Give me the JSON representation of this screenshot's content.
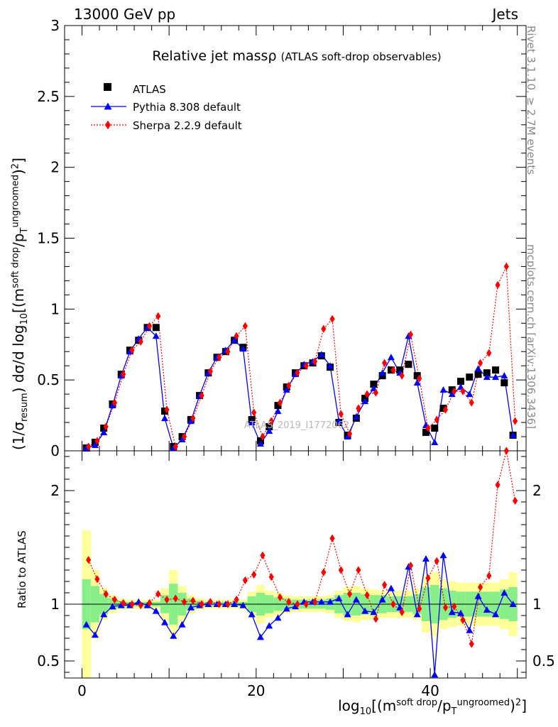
{
  "header": {
    "left": "13000 GeV pp",
    "right": "Jets"
  },
  "side": {
    "rivet": "Rivet 3.1.10, ≥ 2.7M events",
    "mcplots": "mcplots.cern.ch [arXiv:1306.3436]"
  },
  "chart_data": {
    "type": "scatter",
    "title": "Relative jet massρ",
    "subtitle": "(ATLAS soft-drop observables)",
    "watermark": "ATLAS_2019_I1772062",
    "xlabel": "log10[(m^soft drop/pT^ungroomed)^2]",
    "ylabel_top": "(1/σresum) dσ/d log10[(m^soft drop/pT^ungroomed)^2]",
    "ylabel_ratio": "Ratio to ATLAS",
    "xlim": [
      -2,
      51
    ],
    "ylim_top": [
      0,
      3
    ],
    "ylim_ratio": [
      0.35,
      2.35
    ],
    "x_ticks": [
      0,
      20,
      40
    ],
    "y_ticks_top": [
      0,
      0.5,
      1,
      1.5,
      2,
      2.5,
      3
    ],
    "y_tick_labels_top": [
      "0",
      "0.5",
      "1",
      "1.5",
      "2",
      "2.5",
      "3"
    ],
    "y_ticks_ratio": [
      0.5,
      1,
      2
    ],
    "y_tick_labels_ratio": [
      "0.5",
      "1",
      "2"
    ],
    "legend": [
      "ATLAS",
      "Pythia 8.308 default",
      "Sherpa 2.2.9 default"
    ],
    "x": [
      0.5,
      1.5,
      2.5,
      3.5,
      4.5,
      5.5,
      6.5,
      7.5,
      8.5,
      9.5,
      10.5,
      11.5,
      12.5,
      13.5,
      14.5,
      15.5,
      16.5,
      17.5,
      18.5,
      19.5,
      20.5,
      21.5,
      22.5,
      23.5,
      24.5,
      25.5,
      26.5,
      27.5,
      28.5,
      29.5,
      30.5,
      31.5,
      32.5,
      33.5,
      34.5,
      35.5,
      36.5,
      37.5,
      38.5,
      39.5,
      40.5,
      41.5,
      42.5,
      43.5,
      44.5,
      45.5,
      46.5,
      47.5,
      48.5,
      49.5
    ],
    "series": [
      {
        "name": "ATLAS",
        "values": [
          0.02,
          0.06,
          0.16,
          0.33,
          0.54,
          0.71,
          0.78,
          0.87,
          0.87,
          0.28,
          0.03,
          0.1,
          0.22,
          0.39,
          0.55,
          0.66,
          0.7,
          0.78,
          0.73,
          0.22,
          0.07,
          0.17,
          0.32,
          0.45,
          0.55,
          0.6,
          0.62,
          0.67,
          0.59,
          0.2,
          0.11,
          0.23,
          0.37,
          0.47,
          0.53,
          0.57,
          0.57,
          0.61,
          0.53,
          0.13,
          0.16,
          0.3,
          0.43,
          0.49,
          0.52,
          0.54,
          0.55,
          0.57,
          0.48,
          0.11
        ]
      },
      {
        "name": "Pythia 8.308 default",
        "values": [
          0.02,
          0.04,
          0.13,
          0.32,
          0.53,
          0.7,
          0.79,
          0.87,
          0.81,
          0.23,
          0.02,
          0.08,
          0.21,
          0.39,
          0.55,
          0.66,
          0.71,
          0.78,
          0.72,
          0.2,
          0.05,
          0.14,
          0.28,
          0.43,
          0.54,
          0.61,
          0.63,
          0.68,
          0.6,
          0.21,
          0.1,
          0.24,
          0.35,
          0.44,
          0.55,
          0.66,
          0.55,
          0.81,
          0.48,
          0.18,
          0.06,
          0.43,
          0.4,
          0.45,
          0.4,
          0.58,
          0.52,
          0.52,
          0.53,
          0.11
        ]
      },
      {
        "name": "Sherpa 2.2.9 default",
        "values": [
          0.03,
          0.07,
          0.17,
          0.34,
          0.54,
          0.71,
          0.77,
          0.88,
          0.95,
          0.29,
          0.03,
          0.1,
          0.23,
          0.39,
          0.56,
          0.66,
          0.7,
          0.81,
          0.88,
          0.27,
          0.1,
          0.21,
          0.34,
          0.46,
          0.55,
          0.6,
          0.63,
          0.86,
          0.93,
          0.26,
          0.12,
          0.3,
          0.4,
          0.41,
          0.62,
          0.57,
          0.53,
          0.82,
          0.51,
          0.16,
          0.22,
          0.29,
          0.42,
          0.42,
          0.34,
          0.62,
          0.69,
          1.17,
          1.3,
          0.21
        ]
      }
    ],
    "ratio": {
      "Pythia 8.308 default": [
        0.82,
        0.73,
        0.91,
        0.98,
        0.99,
        0.99,
        1.02,
        0.99,
        0.94,
        0.84,
        0.72,
        0.82,
        0.97,
        0.99,
        1.0,
        1.0,
        1.0,
        1.0,
        0.99,
        0.91,
        0.71,
        0.81,
        0.88,
        0.96,
        0.98,
        1.02,
        1.02,
        1.02,
        1.02,
        1.05,
        0.91,
        1.04,
        0.94,
        0.93,
        1.04,
        1.14,
        0.97,
        1.33,
        0.91,
        1.4,
        0.38,
        1.43,
        0.93,
        0.92,
        0.77,
        1.07,
        0.95,
        0.91,
        1.1,
        1.0
      ],
      "Sherpa 2.2.9 default": [
        1.39,
        1.22,
        1.09,
        1.04,
        1.01,
        1.0,
        0.99,
        1.01,
        1.09,
        1.04,
        1.05,
        1.02,
        1.03,
        1.0,
        1.02,
        1.0,
        1.0,
        1.04,
        1.21,
        1.26,
        1.43,
        1.24,
        1.06,
        1.02,
        1.0,
        1.0,
        1.02,
        1.28,
        1.58,
        1.3,
        1.09,
        1.3,
        1.08,
        0.87,
        1.17,
        1.0,
        0.93,
        1.34,
        0.96,
        1.23,
        1.38,
        0.97,
        0.98,
        0.86,
        0.65,
        1.15,
        1.25,
        2.05,
        2.71,
        1.91
      ]
    },
    "ratio_bands": {
      "inner": [
        0.78,
        0.84,
        0.91,
        0.95,
        0.97,
        0.98,
        0.98,
        0.98,
        0.98,
        0.92,
        0.82,
        0.9,
        0.95,
        0.97,
        0.98,
        0.98,
        0.98,
        0.98,
        0.98,
        0.93,
        0.9,
        0.92,
        0.94,
        0.95,
        0.96,
        0.96,
        0.96,
        0.96,
        0.95,
        0.92,
        0.9,
        0.9,
        0.91,
        0.92,
        0.92,
        0.93,
        0.93,
        0.93,
        0.91,
        0.85,
        0.83,
        0.86,
        0.88,
        0.89,
        0.89,
        0.89,
        0.89,
        0.89,
        0.87,
        0.85
      ],
      "outer": [
        0.35,
        0.7,
        0.86,
        0.92,
        0.95,
        0.96,
        0.96,
        0.96,
        0.96,
        0.86,
        0.7,
        0.84,
        0.92,
        0.95,
        0.96,
        0.96,
        0.96,
        0.96,
        0.96,
        0.89,
        0.83,
        0.88,
        0.9,
        0.92,
        0.93,
        0.93,
        0.93,
        0.93,
        0.92,
        0.88,
        0.85,
        0.84,
        0.86,
        0.87,
        0.88,
        0.88,
        0.88,
        0.88,
        0.86,
        0.75,
        0.72,
        0.78,
        0.8,
        0.81,
        0.81,
        0.81,
        0.81,
        0.81,
        0.78,
        0.72
      ]
    }
  }
}
